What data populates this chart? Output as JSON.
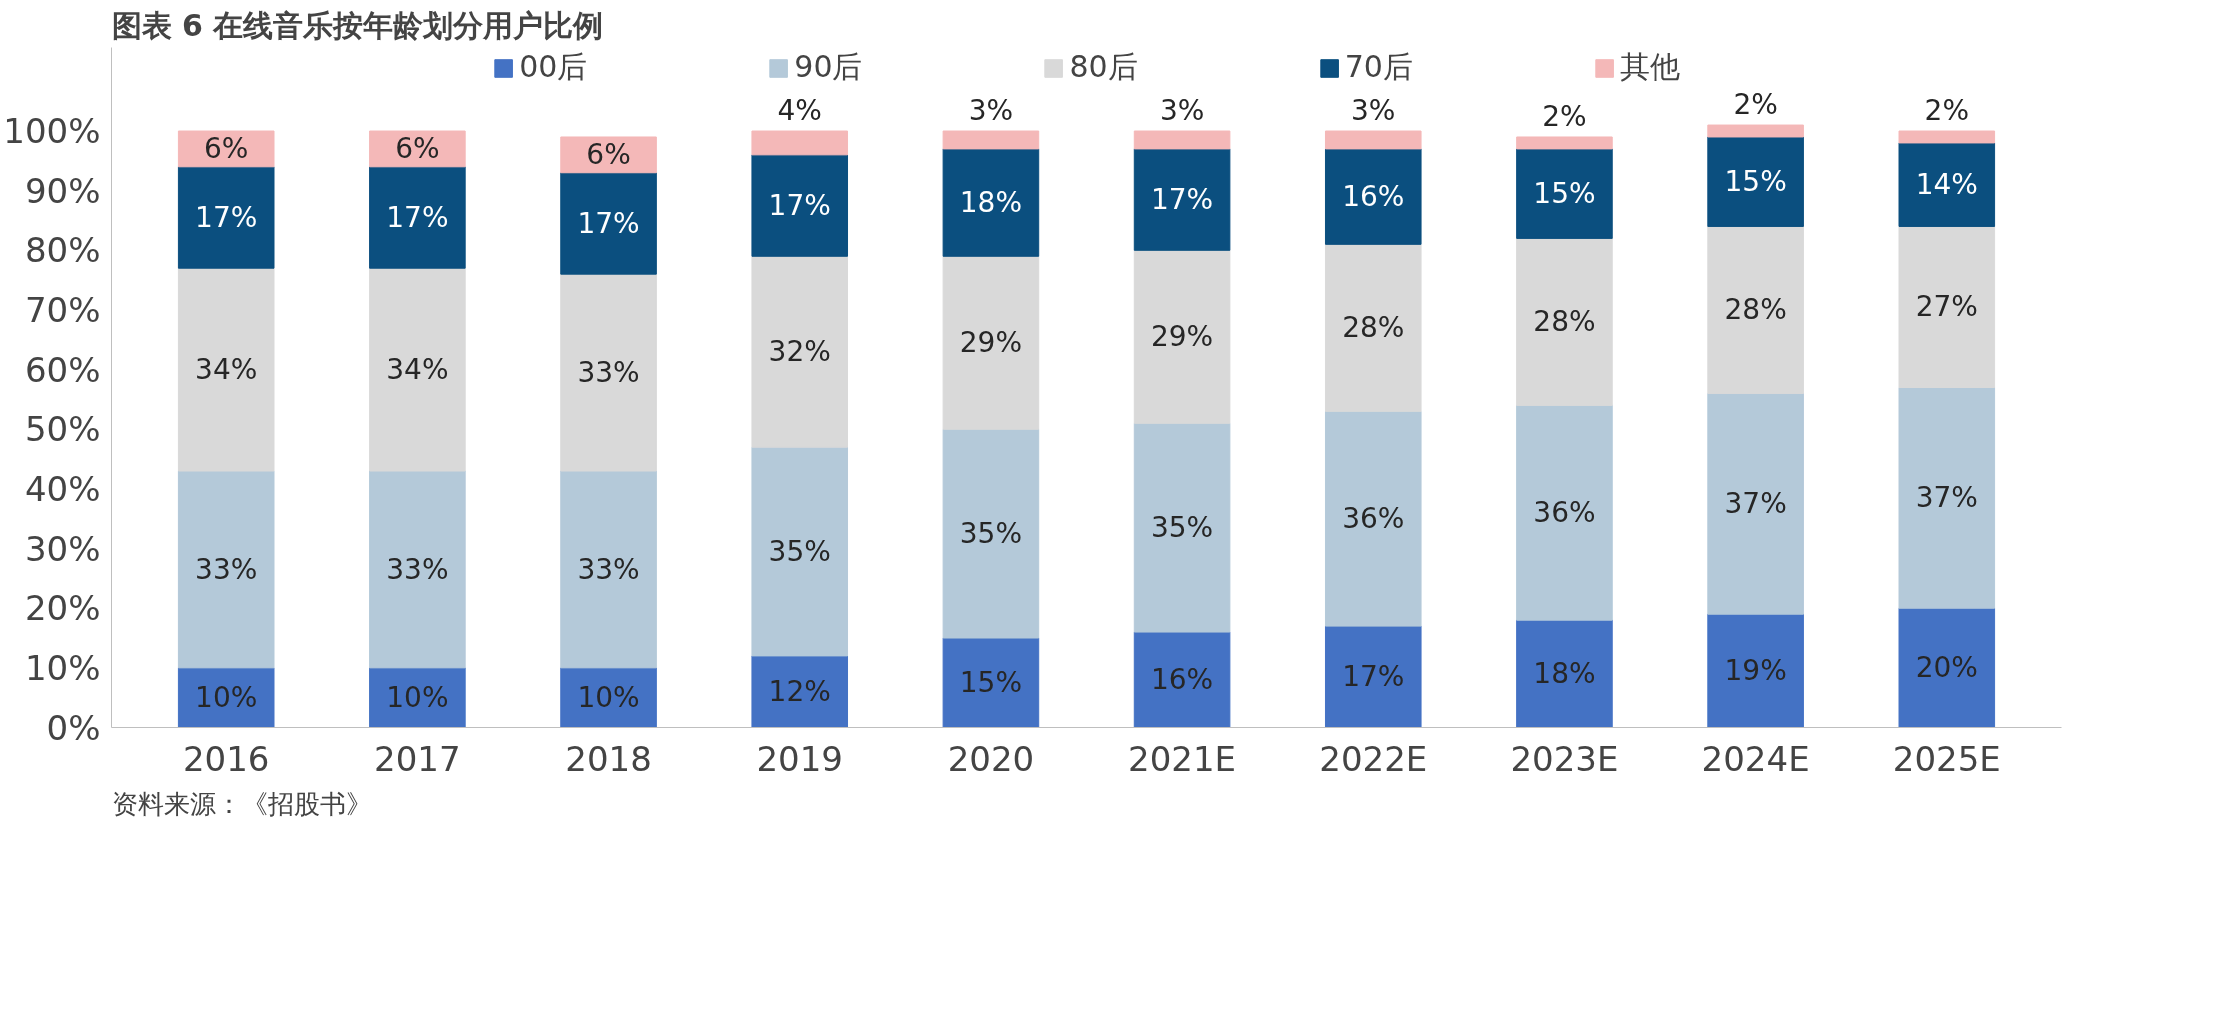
{
  "chart_data": {
    "type": "bar",
    "stacked": true,
    "title": "图表 6 在线音乐按年龄划分用户比例",
    "categories": [
      "2016",
      "2017",
      "2018",
      "2019",
      "2020",
      "2021E",
      "2022E",
      "2023E",
      "2024E",
      "2025E"
    ],
    "series": [
      {
        "name": "00后",
        "color": "#4472c4",
        "values": [
          10,
          10,
          10,
          12,
          15,
          16,
          17,
          18,
          19,
          20
        ],
        "value_labels": [
          "10%",
          "10%",
          "10%",
          "12%",
          "15%",
          "16%",
          "17%",
          "18%",
          "19%",
          "20%"
        ]
      },
      {
        "name": "90后",
        "color": "#b4c9d9",
        "values": [
          33,
          33,
          33,
          35,
          35,
          35,
          36,
          36,
          37,
          37
        ],
        "value_labels": [
          "33%",
          "33%",
          "33%",
          "35%",
          "35%",
          "35%",
          "36%",
          "36%",
          "37%",
          "37%"
        ]
      },
      {
        "name": "80后",
        "color": "#d9d9d9",
        "values": [
          34,
          34,
          33,
          32,
          29,
          29,
          28,
          28,
          28,
          27
        ],
        "value_labels": [
          "34%",
          "34%",
          "33%",
          "32%",
          "29%",
          "29%",
          "28%",
          "28%",
          "28%",
          "27%"
        ]
      },
      {
        "name": "70后",
        "color": "#0b4f7f",
        "values": [
          17,
          17,
          17,
          17,
          18,
          17,
          16,
          15,
          15,
          14
        ],
        "value_labels": [
          "17%",
          "17%",
          "17%",
          "17%",
          "18%",
          "17%",
          "16%",
          "15%",
          "15%",
          "14%"
        ]
      },
      {
        "name": "其他",
        "color": "#f4b8b8",
        "values": [
          6,
          6,
          6,
          4,
          3,
          3,
          3,
          2,
          2,
          2
        ],
        "value_labels": [
          "6%",
          "6%",
          "6%",
          "4%",
          "3%",
          "3%",
          "3%",
          "2%",
          "2%",
          "2%"
        ]
      }
    ],
    "ylim": [
      0,
      114
    ],
    "yticks": [
      {
        "value": 0,
        "label": "0%"
      },
      {
        "value": 10,
        "label": "10%"
      },
      {
        "value": 20,
        "label": "20%"
      },
      {
        "value": 30,
        "label": "30%"
      },
      {
        "value": 40,
        "label": "40%"
      },
      {
        "value": 50,
        "label": "50%"
      },
      {
        "value": 60,
        "label": "60%"
      },
      {
        "value": 70,
        "label": "70%"
      },
      {
        "value": 80,
        "label": "80%"
      },
      {
        "value": 90,
        "label": "90%"
      },
      {
        "value": 100,
        "label": "100%"
      }
    ],
    "grid": false,
    "legend": "top",
    "annotations": [
      "资料来源：《招股书》"
    ]
  }
}
